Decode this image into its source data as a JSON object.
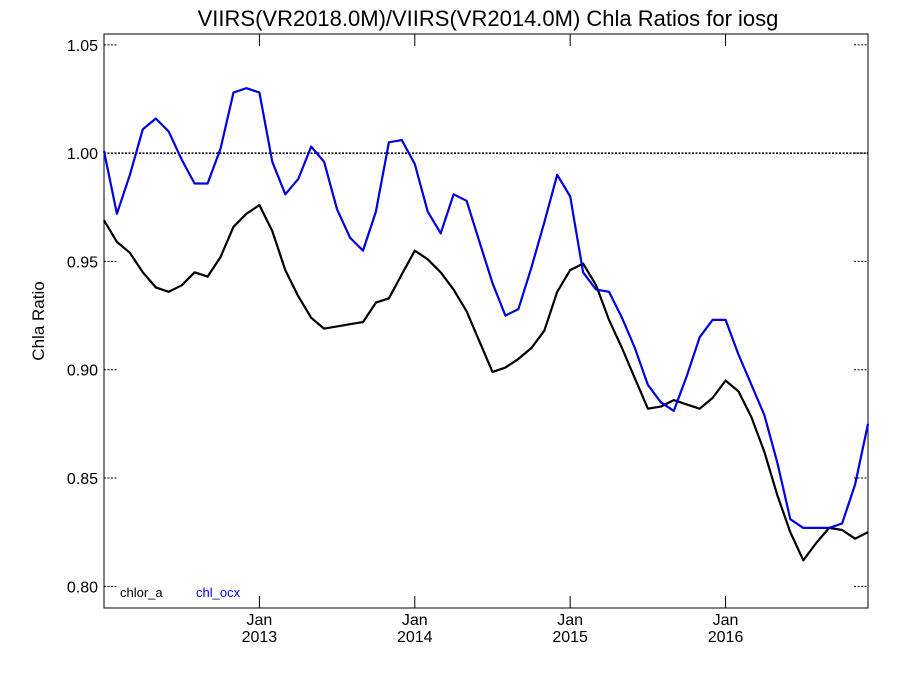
{
  "chart_data": {
    "type": "line",
    "title": "VIIRS(VR2018.0M)/VIIRS(VR2014.0M)  Chla Ratios for iosg",
    "xlabel": "",
    "ylabel": "Chla Ratio",
    "xlim": [
      "2012-01",
      "2016-12"
    ],
    "ylim": [
      0.79,
      1.055
    ],
    "yticks": [
      {
        "value": 0.8,
        "label": "0.80"
      },
      {
        "value": 0.85,
        "label": "0.85"
      },
      {
        "value": 0.9,
        "label": "0.90"
      },
      {
        "value": 0.95,
        "label": "0.95"
      },
      {
        "value": 1.0,
        "label": "1.00"
      },
      {
        "value": 1.05,
        "label": "1.05"
      }
    ],
    "xticks": [
      {
        "month": "2013-01",
        "line1": "Jan",
        "line2": "2013"
      },
      {
        "month": "2014-01",
        "line1": "Jan",
        "line2": "2014"
      },
      {
        "month": "2015-01",
        "line1": "Jan",
        "line2": "2015"
      },
      {
        "month": "2016-01",
        "line1": "Jan",
        "line2": "2016"
      }
    ],
    "reference_line": 1.0,
    "grid": false,
    "legend_position": "bottom-left",
    "x": [
      "2012-01",
      "2012-02",
      "2012-03",
      "2012-04",
      "2012-05",
      "2012-06",
      "2012-07",
      "2012-08",
      "2012-09",
      "2012-10",
      "2012-11",
      "2012-12",
      "2013-01",
      "2013-02",
      "2013-03",
      "2013-04",
      "2013-05",
      "2013-06",
      "2013-07",
      "2013-08",
      "2013-09",
      "2013-10",
      "2013-11",
      "2013-12",
      "2014-01",
      "2014-02",
      "2014-03",
      "2014-04",
      "2014-05",
      "2014-06",
      "2014-07",
      "2014-08",
      "2014-09",
      "2014-10",
      "2014-11",
      "2014-12",
      "2015-01",
      "2015-02",
      "2015-03",
      "2015-04",
      "2015-05",
      "2015-06",
      "2015-07",
      "2015-08",
      "2015-09",
      "2015-10",
      "2015-11",
      "2015-12",
      "2016-01",
      "2016-02",
      "2016-03",
      "2016-04",
      "2016-05",
      "2016-06",
      "2016-07",
      "2016-08",
      "2016-09",
      "2016-10",
      "2016-11",
      "2016-12"
    ],
    "series": [
      {
        "name": "chlor_a",
        "color": "#000000",
        "values": [
          0.969,
          0.959,
          0.954,
          0.945,
          0.938,
          0.936,
          0.939,
          0.945,
          0.943,
          0.952,
          0.966,
          0.972,
          0.976,
          0.964,
          0.946,
          0.934,
          0.924,
          0.919,
          0.92,
          0.921,
          0.922,
          0.931,
          0.933,
          0.944,
          0.955,
          0.951,
          0.945,
          0.937,
          0.927,
          0.913,
          0.899,
          0.901,
          0.905,
          0.91,
          0.918,
          0.936,
          0.946,
          0.949,
          0.939,
          0.923,
          0.91,
          0.896,
          0.882,
          0.883,
          0.886,
          0.884,
          0.882,
          0.887,
          0.895,
          0.89,
          0.878,
          0.862,
          0.842,
          0.825,
          0.812,
          0.82,
          0.827,
          0.826,
          0.822,
          0.825
        ]
      },
      {
        "name": "chl_ocx",
        "color": "#0000dd",
        "values": [
          1.001,
          0.972,
          0.99,
          1.011,
          1.016,
          1.01,
          0.997,
          0.986,
          0.986,
          1.002,
          1.028,
          1.03,
          1.028,
          0.996,
          0.981,
          0.988,
          1.003,
          0.996,
          0.974,
          0.961,
          0.955,
          0.973,
          1.005,
          1.006,
          0.995,
          0.973,
          0.963,
          0.981,
          0.978,
          0.959,
          0.94,
          0.925,
          0.928,
          0.947,
          0.968,
          0.99,
          0.98,
          0.945,
          0.937,
          0.936,
          0.924,
          0.91,
          0.893,
          0.885,
          0.881,
          0.897,
          0.915,
          0.923,
          0.923,
          0.907,
          0.893,
          0.879,
          0.857,
          0.831,
          0.827,
          0.827,
          0.827,
          0.829,
          0.847,
          0.875
        ]
      }
    ]
  }
}
